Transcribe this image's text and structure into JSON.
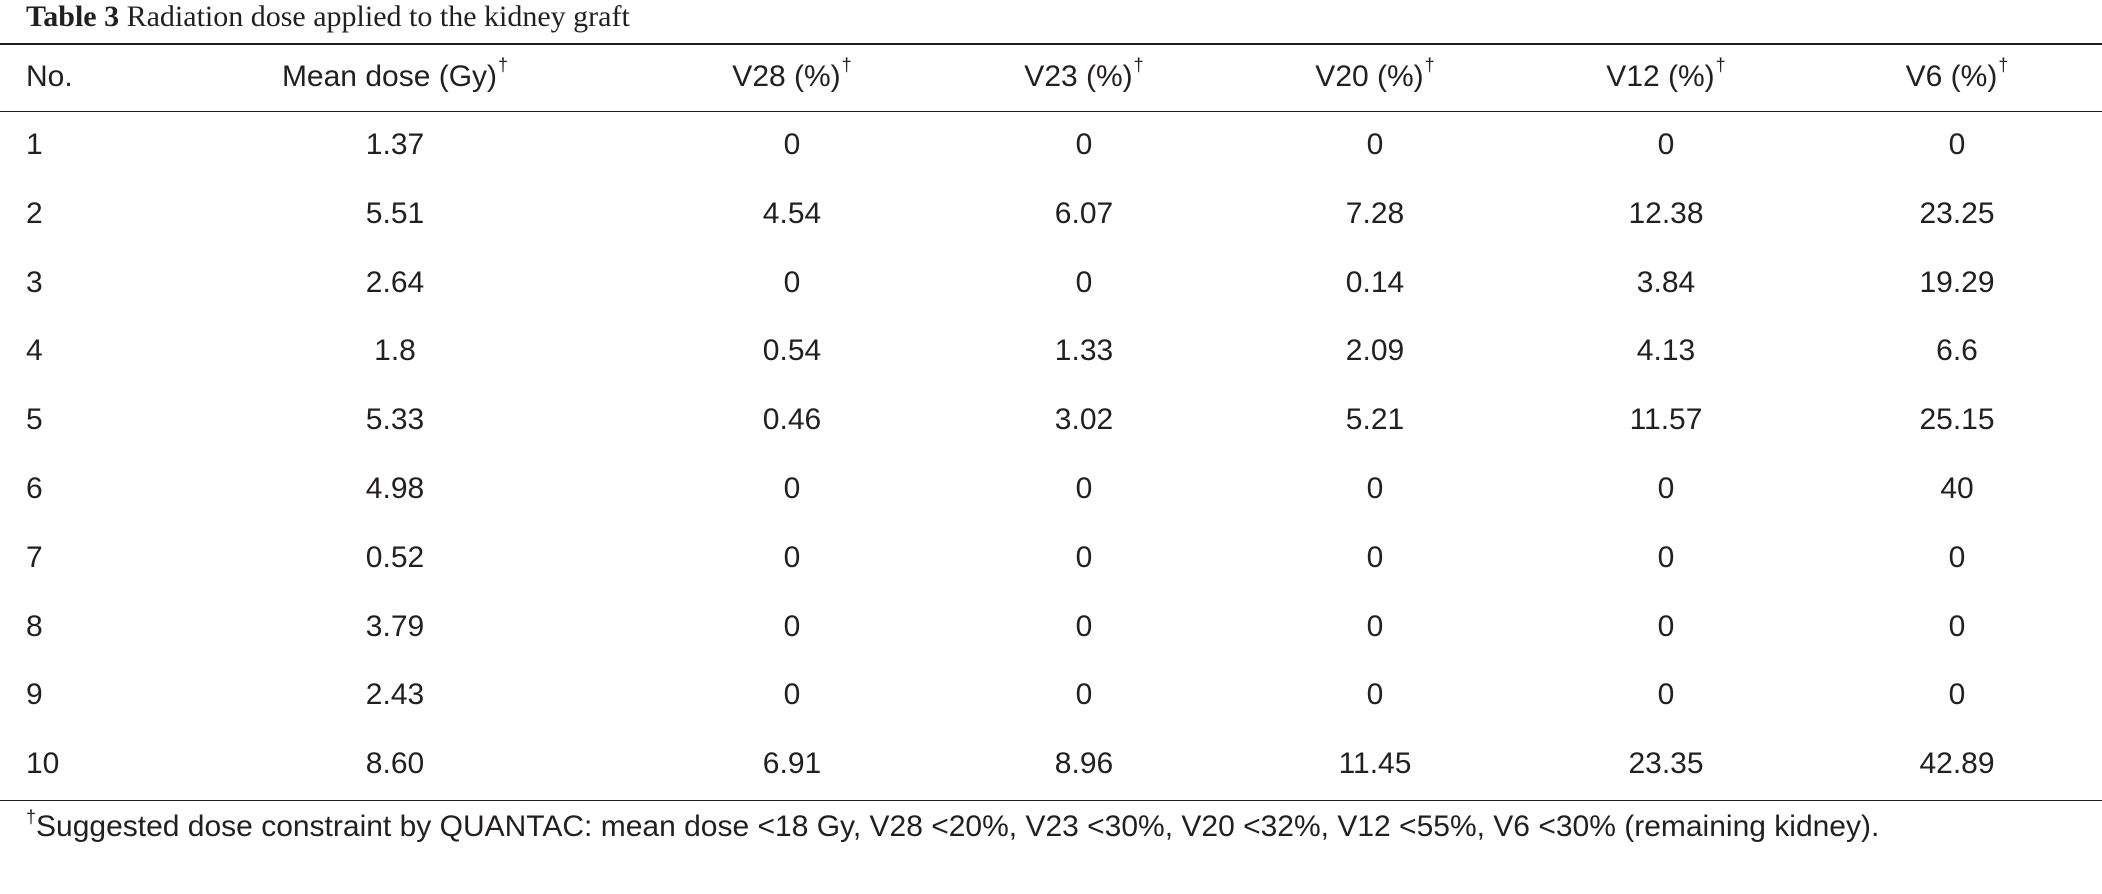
{
  "caption": {
    "label": "Table 3",
    "text": "Radiation dose applied to the kidney graft"
  },
  "table": {
    "columns": [
      "No.",
      "Mean dose (Gy)",
      "V28 (%)",
      "V23 (%)",
      "V20 (%)",
      "V12 (%)",
      "V6 (%)"
    ],
    "header_mark": "†",
    "rows": [
      [
        "1",
        "1.37",
        "0",
        "0",
        "0",
        "0",
        "0"
      ],
      [
        "2",
        "5.51",
        "4.54",
        "6.07",
        "7.28",
        "12.38",
        "23.25"
      ],
      [
        "3",
        "2.64",
        "0",
        "0",
        "0.14",
        "3.84",
        "19.29"
      ],
      [
        "4",
        "1.8",
        "0.54",
        "1.33",
        "2.09",
        "4.13",
        "6.6"
      ],
      [
        "5",
        "5.33",
        "0.46",
        "3.02",
        "5.21",
        "11.57",
        "25.15"
      ],
      [
        "6",
        "4.98",
        "0",
        "0",
        "0",
        "0",
        "40"
      ],
      [
        "7",
        "0.52",
        "0",
        "0",
        "0",
        "0",
        "0"
      ],
      [
        "8",
        "3.79",
        "0",
        "0",
        "0",
        "0",
        "0"
      ],
      [
        "9",
        "2.43",
        "0",
        "0",
        "0",
        "0",
        "0"
      ],
      [
        "10",
        "8.60",
        "6.91",
        "8.96",
        "11.45",
        "23.35",
        "42.89"
      ]
    ]
  },
  "footnote": {
    "mark": "†",
    "text": "Suggested dose constraint by QUANTAC: mean dose <18 Gy, V28 <20%, V23 <30%, V20 <32%, V12 <55%, V6 <30% (remaining kidney)."
  }
}
